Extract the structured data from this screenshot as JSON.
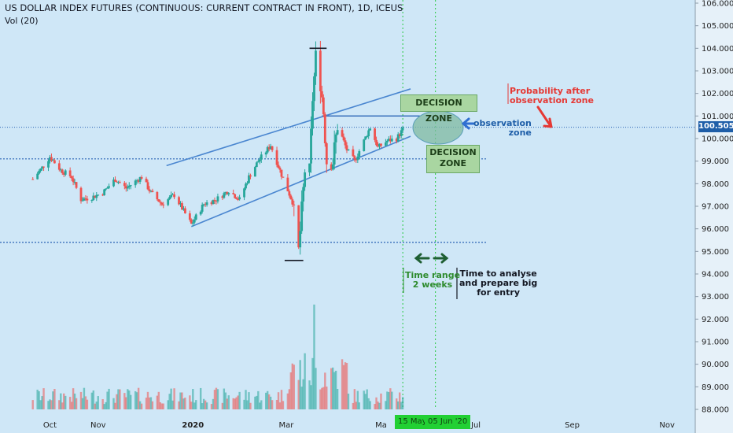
{
  "header": {
    "title": "US DOLLAR INDEX FUTURES (CONTINUOUS: CURRENT CONTRACT IN FRONT), 1D, ICEUS",
    "volume_indicator": "Vol (20)"
  },
  "colors": {
    "up": "#26a69a",
    "down": "#ef5350",
    "channel": "#4a86d0",
    "level": "#2a63b5",
    "decision_fill": "#a9d6a1",
    "observation_fill": "#7fb9a0",
    "price_tag": "#1e5ea8",
    "date_tag": "#22d033"
  },
  "last_price": "100.505",
  "annotations": {
    "decision_zone_upper": "DECISION ZONE",
    "decision_zone_lower_line1": "DECISION",
    "decision_zone_lower_line2": "ZONE",
    "observation_line1": "observation",
    "observation_line2": "zone",
    "probability_line1": "Probability after",
    "probability_line2": "observation zone",
    "time_range_line1": "Time range",
    "time_range_line2": "2 weeks",
    "analyse_line1": "Time to analyse",
    "analyse_line2": "and prepare big",
    "analyse_line3": "for entry"
  },
  "date_tags": {
    "start": "15 May",
    "end": "05 Jun '20"
  },
  "chart_data": {
    "type": "candlestick",
    "title": "US DOLLAR INDEX FUTURES (CONTINUOUS: CURRENT CONTRACT IN FRONT), 1D, ICEUS",
    "ylim": [
      88,
      106
    ],
    "y_ticks": [
      "88.000",
      "89.000",
      "90.000",
      "91.000",
      "92.000",
      "93.000",
      "94.000",
      "95.000",
      "96.000",
      "97.000",
      "98.000",
      "99.000",
      "100.000",
      "101.000",
      "102.000",
      "103.000",
      "104.000",
      "105.000",
      "106.000"
    ],
    "x_ticks": [
      "Oct",
      "Nov",
      "2020",
      "Mar",
      "Ma",
      "Jul",
      "Sep",
      "Nov"
    ],
    "price_path": [
      [
        "2019-09-20",
        98.2
      ],
      [
        "2019-09-27",
        98.8
      ],
      [
        "2019-10-01",
        99.2
      ],
      [
        "2019-10-08",
        98.6
      ],
      [
        "2019-10-15",
        98.3
      ],
      [
        "2019-10-21",
        97.3
      ],
      [
        "2019-10-28",
        97.4
      ],
      [
        "2019-11-04",
        97.6
      ],
      [
        "2019-11-12",
        98.2
      ],
      [
        "2019-11-19",
        97.8
      ],
      [
        "2019-11-29",
        98.3
      ],
      [
        "2019-12-05",
        97.6
      ],
      [
        "2019-12-12",
        97.1
      ],
      [
        "2019-12-20",
        97.5
      ],
      [
        "2019-12-31",
        96.2
      ],
      [
        "2020-01-08",
        97.1
      ],
      [
        "2020-01-16",
        97.3
      ],
      [
        "2020-01-24",
        97.7
      ],
      [
        "2020-01-31",
        97.3
      ],
      [
        "2020-02-06",
        98.3
      ],
      [
        "2020-02-12",
        99.0
      ],
      [
        "2020-02-20",
        99.7
      ],
      [
        "2020-02-27",
        98.4
      ],
      [
        "2020-03-05",
        97.2
      ],
      [
        "2020-03-09",
        95.0
      ],
      [
        "2020-03-11",
        96.8
      ],
      [
        "2020-03-13",
        98.6
      ],
      [
        "2020-03-16",
        98.5
      ],
      [
        "2020-03-18",
        101.8
      ],
      [
        "2020-03-20",
        103.6
      ],
      [
        "2020-03-23",
        102.5
      ],
      [
        "2020-03-25",
        101.2
      ],
      [
        "2020-03-27",
        99.0
      ],
      [
        "2020-03-31",
        99.0
      ],
      [
        "2020-04-03",
        100.6
      ],
      [
        "2020-04-09",
        99.5
      ],
      [
        "2020-04-14",
        99.0
      ],
      [
        "2020-04-20",
        99.9
      ],
      [
        "2020-04-24",
        100.5
      ],
      [
        "2020-04-29",
        99.6
      ],
      [
        "2020-05-05",
        99.9
      ],
      [
        "2020-05-11",
        100.0
      ],
      [
        "2020-05-15",
        100.4
      ]
    ],
    "key_levels": {
      "top_high": 104.0,
      "bottom_low": 94.6,
      "resistance": 101.0,
      "support_dotted_upper": 99.1,
      "support_dotted_lower": 95.4
    },
    "channel": {
      "upper": [
        [
          "2019-12-15",
          98.8
        ],
        [
          "2020-05-20",
          102.2
        ]
      ],
      "lower": [
        [
          "2019-12-31",
          96.1
        ],
        [
          "2020-05-20",
          100.1
        ]
      ]
    },
    "volume_ylim": [
      88,
      92.8
    ],
    "highlighted_range": [
      "2020-05-15",
      "2020-06-05"
    ]
  }
}
